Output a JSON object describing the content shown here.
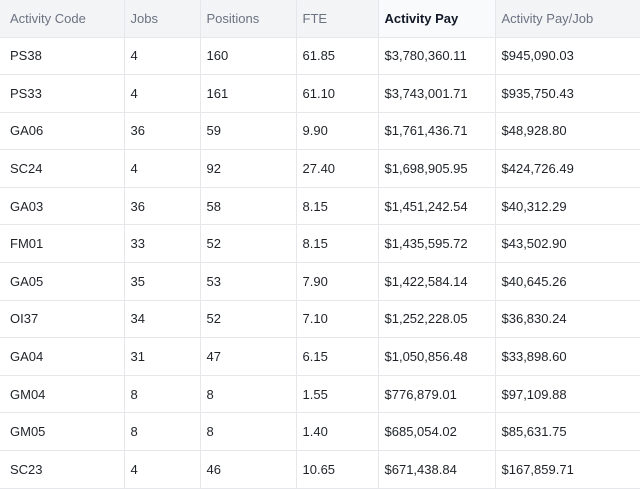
{
  "table": {
    "columns": [
      "Activity Code",
      "Jobs",
      "Positions",
      "FTE",
      "Activity Pay",
      "Activity Pay/Job"
    ],
    "sorted_column": "Activity Pay",
    "rows": [
      [
        "PS38",
        "4",
        "160",
        "61.85",
        "$3,780,360.11",
        "$945,090.03"
      ],
      [
        "PS33",
        "4",
        "161",
        "61.10",
        "$3,743,001.71",
        "$935,750.43"
      ],
      [
        "GA06",
        "36",
        "59",
        "9.90",
        "$1,761,436.71",
        "$48,928.80"
      ],
      [
        "SC24",
        "4",
        "92",
        "27.40",
        "$1,698,905.95",
        "$424,726.49"
      ],
      [
        "GA03",
        "36",
        "58",
        "8.15",
        "$1,451,242.54",
        "$40,312.29"
      ],
      [
        "FM01",
        "33",
        "52",
        "8.15",
        "$1,435,595.72",
        "$43,502.90"
      ],
      [
        "GA05",
        "35",
        "53",
        "7.90",
        "$1,422,584.14",
        "$40,645.26"
      ],
      [
        "OI37",
        "34",
        "52",
        "7.10",
        "$1,252,228.05",
        "$36,830.24"
      ],
      [
        "GA04",
        "31",
        "47",
        "6.15",
        "$1,050,856.48",
        "$33,898.60"
      ],
      [
        "GM04",
        "8",
        "8",
        "1.55",
        "$776,879.01",
        "$97,109.88"
      ],
      [
        "GM05",
        "8",
        "8",
        "1.40",
        "$685,054.02",
        "$85,631.75"
      ],
      [
        "SC23",
        "4",
        "46",
        "10.65",
        "$671,438.84",
        "$167,859.71"
      ]
    ]
  }
}
